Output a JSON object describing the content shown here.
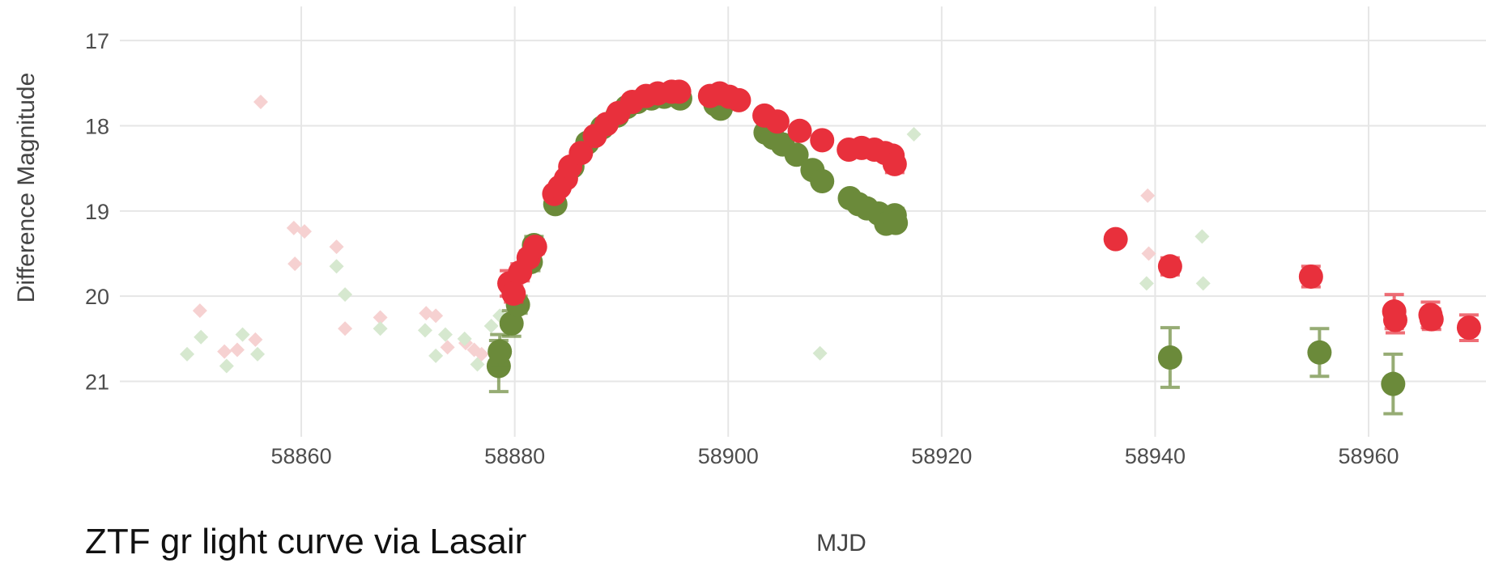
{
  "chart_data": {
    "type": "scatter",
    "caption": "ZTF gr light curve via Lasair",
    "xlabel": "MJD",
    "ylabel": "Difference Magnitude",
    "xlim": [
      58843,
      58971
    ],
    "ylim": [
      21.65,
      16.6
    ],
    "y_inverted": true,
    "grid": true,
    "x_ticks": [
      {
        "value": 58860,
        "label": "58860"
      },
      {
        "value": 58880,
        "label": "58880"
      },
      {
        "value": 58900,
        "label": "58900"
      },
      {
        "value": 58920,
        "label": "58920"
      },
      {
        "value": 58940,
        "label": "58940"
      },
      {
        "value": 58960,
        "label": "58960"
      }
    ],
    "y_ticks": [
      {
        "value": 17,
        "label": "17"
      },
      {
        "value": 18,
        "label": "18"
      },
      {
        "value": 19,
        "label": "19"
      },
      {
        "value": 20,
        "label": "20"
      },
      {
        "value": 21,
        "label": "21"
      }
    ],
    "colors": {
      "g": "#6b8a3a",
      "r": "#e8303c",
      "g_limit": "#d6e8cf",
      "r_limit": "#f6d1d1",
      "grid": "#e6e6e6"
    },
    "series": [
      {
        "band": "r",
        "kind": "upper_limit",
        "points": [
          [
            58850.5,
            20.17
          ],
          [
            58852.8,
            20.65
          ],
          [
            58854.0,
            20.63
          ],
          [
            58855.7,
            20.51
          ],
          [
            58856.2,
            17.72
          ],
          [
            58859.3,
            19.2
          ],
          [
            58860.3,
            19.24
          ],
          [
            58859.4,
            19.62
          ],
          [
            58863.3,
            19.42
          ],
          [
            58864.1,
            20.38
          ],
          [
            58867.4,
            20.25
          ],
          [
            58871.7,
            20.2
          ],
          [
            58872.6,
            20.23
          ],
          [
            58873.7,
            20.6
          ],
          [
            58875.4,
            20.55
          ],
          [
            58876.2,
            20.63
          ],
          [
            58876.9,
            20.68
          ],
          [
            58879.0,
            19.85
          ],
          [
            58879.3,
            19.95
          ],
          [
            58939.3,
            18.82
          ],
          [
            58939.4,
            19.5
          ]
        ]
      },
      {
        "band": "g",
        "kind": "upper_limit",
        "points": [
          [
            58849.3,
            20.68
          ],
          [
            58850.6,
            20.48
          ],
          [
            58853.0,
            20.82
          ],
          [
            58854.5,
            20.45
          ],
          [
            58855.9,
            20.68
          ],
          [
            58863.3,
            19.65
          ],
          [
            58864.1,
            19.98
          ],
          [
            58867.4,
            20.38
          ],
          [
            58871.6,
            20.4
          ],
          [
            58872.6,
            20.7
          ],
          [
            58873.5,
            20.45
          ],
          [
            58875.3,
            20.5
          ],
          [
            58876.5,
            20.8
          ],
          [
            58877.8,
            20.35
          ],
          [
            58878.6,
            20.23
          ],
          [
            58908.6,
            20.67
          ],
          [
            58917.4,
            18.1
          ],
          [
            58939.2,
            19.85
          ],
          [
            58944.4,
            19.3
          ],
          [
            58944.5,
            19.85
          ],
          [
            58955.0,
            20.68
          ]
        ]
      },
      {
        "band": "g",
        "kind": "detection",
        "points": [
          [
            58878.5,
            20.82,
            0.3
          ],
          [
            58878.6,
            20.65,
            0.2
          ],
          [
            58879.7,
            20.32,
            0.15
          ],
          [
            58880.3,
            20.1,
            0.1
          ],
          [
            58881.5,
            19.6,
            0.1
          ],
          [
            58881.8,
            19.4,
            0.1
          ],
          [
            58883.8,
            18.92,
            0.05
          ],
          [
            58885.4,
            18.48,
            0.05
          ],
          [
            58886.8,
            18.2,
            0.04
          ],
          [
            58888.2,
            18.02,
            0.04
          ],
          [
            58889.6,
            17.88,
            0.03
          ],
          [
            58890.5,
            17.78,
            0.03
          ],
          [
            58891.5,
            17.72,
            0.03
          ],
          [
            58892.8,
            17.68,
            0.03
          ],
          [
            58894.0,
            17.66,
            0.03
          ],
          [
            58895.5,
            17.68,
            0.03
          ],
          [
            58898.8,
            17.75,
            0.03
          ],
          [
            58899.3,
            17.8,
            0.03
          ],
          [
            58903.5,
            18.08,
            0.03
          ],
          [
            58904.2,
            18.14,
            0.03
          ],
          [
            58905.1,
            18.22,
            0.03
          ],
          [
            58906.4,
            18.34,
            0.04
          ],
          [
            58907.9,
            18.52,
            0.04
          ],
          [
            58908.8,
            18.65,
            0.04
          ],
          [
            58911.4,
            18.85,
            0.05
          ],
          [
            58912.2,
            18.92,
            0.05
          ],
          [
            58913.0,
            18.97,
            0.05
          ],
          [
            58914.1,
            19.03,
            0.05
          ],
          [
            58914.8,
            19.15,
            0.06
          ],
          [
            58915.6,
            19.05,
            0.08
          ],
          [
            58915.7,
            19.14,
            0.06
          ],
          [
            58941.4,
            20.72,
            0.35
          ],
          [
            58955.4,
            20.66,
            0.28
          ],
          [
            58962.3,
            21.03,
            0.35
          ]
        ]
      },
      {
        "band": "r",
        "kind": "detection",
        "points": [
          [
            58879.5,
            19.85,
            0.15
          ],
          [
            58879.9,
            19.97,
            0.1
          ],
          [
            58880.5,
            19.72,
            0.1
          ],
          [
            58881.3,
            19.55,
            0.08
          ],
          [
            58881.9,
            19.42,
            0.08
          ],
          [
            58883.7,
            18.8,
            0.05
          ],
          [
            58884.2,
            18.72,
            0.05
          ],
          [
            58884.8,
            18.62,
            0.05
          ],
          [
            58885.2,
            18.48,
            0.04
          ],
          [
            58886.2,
            18.32,
            0.04
          ],
          [
            58887.5,
            18.12,
            0.04
          ],
          [
            58888.6,
            17.98,
            0.03
          ],
          [
            58889.7,
            17.85,
            0.03
          ],
          [
            58891.0,
            17.72,
            0.03
          ],
          [
            58892.3,
            17.65,
            0.03
          ],
          [
            58893.4,
            17.62,
            0.03
          ],
          [
            58894.7,
            17.6,
            0.03
          ],
          [
            58895.4,
            17.6,
            0.03
          ],
          [
            58898.3,
            17.65,
            0.03
          ],
          [
            58899.2,
            17.62,
            0.03
          ],
          [
            58900.1,
            17.66,
            0.03
          ],
          [
            58901.0,
            17.7,
            0.03
          ],
          [
            58903.4,
            17.88,
            0.03
          ],
          [
            58904.6,
            17.95,
            0.03
          ],
          [
            58906.7,
            18.06,
            0.04
          ],
          [
            58908.8,
            18.17,
            0.04
          ],
          [
            58911.3,
            18.28,
            0.04
          ],
          [
            58912.5,
            18.26,
            0.04
          ],
          [
            58913.7,
            18.28,
            0.04
          ],
          [
            58914.7,
            18.32,
            0.05
          ],
          [
            58915.4,
            18.35,
            0.06
          ],
          [
            58915.6,
            18.45,
            0.1
          ],
          [
            58936.3,
            19.33,
            0.05
          ],
          [
            58941.4,
            19.65,
            0.1
          ],
          [
            58954.6,
            19.77,
            0.12
          ],
          [
            58962.4,
            20.18,
            0.2
          ],
          [
            58962.5,
            20.28,
            0.15
          ],
          [
            58965.8,
            20.22,
            0.15
          ],
          [
            58965.9,
            20.27,
            0.12
          ],
          [
            58969.4,
            20.37,
            0.15
          ]
        ]
      }
    ]
  }
}
